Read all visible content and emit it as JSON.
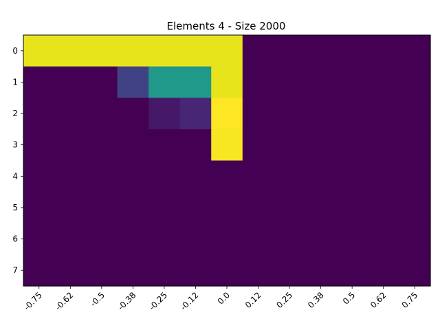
{
  "chart_data": {
    "type": "heatmap",
    "title": "Elements 4 - Size 2000",
    "xlabel": "",
    "ylabel": "",
    "x_tick_labels": [
      "-0.75",
      "-0.62",
      "-0.5",
      "-0.38",
      "-0.25",
      "-0.12",
      "0.0",
      "0.12",
      "0.25",
      "0.38",
      "0.5",
      "0.62",
      "0.75"
    ],
    "y_tick_labels": [
      "0",
      "1",
      "2",
      "3",
      "4",
      "5",
      "6",
      "7"
    ],
    "colormap": "viridis",
    "value_range": [
      0,
      1
    ],
    "values": [
      [
        0.93,
        0.93,
        0.93,
        0.93,
        0.93,
        0.93,
        0.93,
        0,
        0,
        0,
        0,
        0,
        0
      ],
      [
        0,
        0,
        0,
        0.18,
        0.48,
        0.48,
        0.93,
        0,
        0,
        0,
        0,
        0,
        0
      ],
      [
        0,
        0,
        0,
        0,
        0.06,
        0.1,
        1.0,
        0,
        0,
        0,
        0,
        0,
        0
      ],
      [
        0,
        0,
        0,
        0,
        0,
        0,
        0.98,
        0,
        0,
        0,
        0,
        0,
        0
      ],
      [
        0,
        0,
        0,
        0,
        0,
        0,
        0,
        0,
        0,
        0,
        0,
        0,
        0
      ],
      [
        0,
        0,
        0,
        0,
        0,
        0,
        0,
        0,
        0,
        0,
        0,
        0,
        0
      ],
      [
        0,
        0,
        0,
        0,
        0,
        0,
        0,
        0,
        0,
        0,
        0,
        0,
        0
      ],
      [
        0,
        0,
        0,
        0,
        0,
        0,
        0,
        0,
        0,
        0,
        0,
        0,
        0
      ]
    ]
  }
}
